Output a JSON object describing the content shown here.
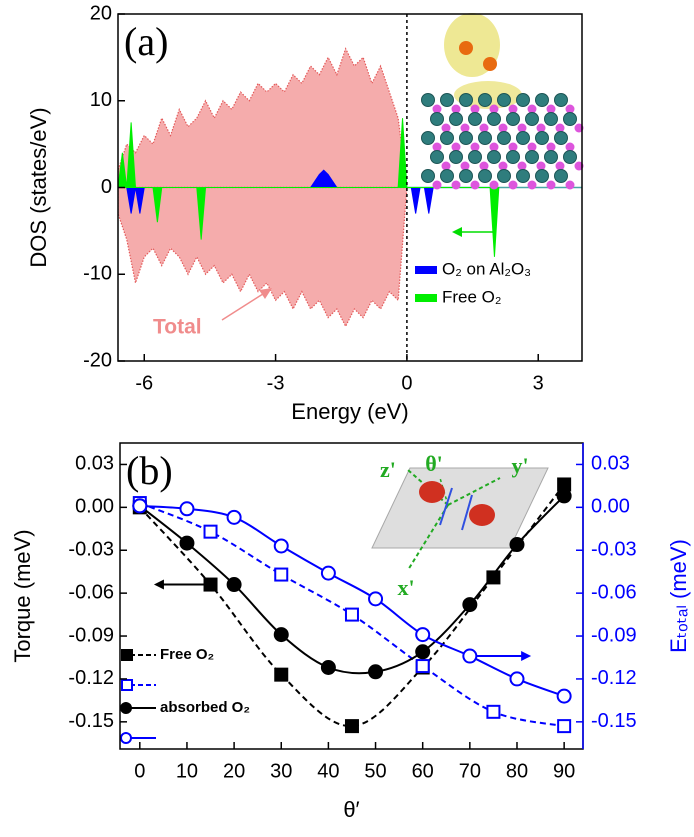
{
  "chart_data": [
    {
      "type": "area",
      "panel_label": "(a)",
      "xlabel": "Energy (eV)",
      "ylabel": "DOS (states/eV)",
      "annotation": "Total",
      "xlim": [
        -6.6,
        4
      ],
      "xticks": [
        -6,
        -3,
        0,
        3
      ],
      "ylim": [
        -20,
        20
      ],
      "yticks": [
        -20,
        -10,
        0,
        10,
        20
      ],
      "legend": "lower right",
      "series": [
        {
          "color": "#f4a4a4",
          "x": [
            -6.6,
            -6.4,
            -6.2,
            -6.0,
            -5.8,
            -5.6,
            -5.4,
            -5.2,
            -5.0,
            -4.8,
            -4.6,
            -4.4,
            -4.2,
            -4.0,
            -3.8,
            -3.6,
            -3.4,
            -3.2,
            -3.0,
            -2.8,
            -2.6,
            -2.4,
            -2.2,
            -2.0,
            -1.8,
            -1.6,
            -1.4,
            -1.2,
            -1.0,
            -0.8,
            -0.6,
            -0.4,
            -0.2,
            0
          ],
          "values": [
            2,
            5,
            4,
            6,
            5,
            8,
            6,
            9,
            7,
            8,
            10,
            8,
            10,
            9,
            11,
            10,
            12,
            11,
            12,
            11,
            13,
            12,
            14,
            13,
            15,
            13,
            16,
            14,
            15,
            12,
            14,
            11,
            8,
            0
          ]
        },
        {
          "color": "#f4a4a4",
          "x": [
            -6.6,
            -6.4,
            -6.2,
            -6.0,
            -5.8,
            -5.6,
            -5.4,
            -5.2,
            -5.0,
            -4.8,
            -4.6,
            -4.4,
            -4.2,
            -4.0,
            -3.8,
            -3.6,
            -3.4,
            -3.2,
            -3.0,
            -2.8,
            -2.6,
            -2.4,
            -2.2,
            -2.0,
            -1.8,
            -1.6,
            -1.4,
            -1.2,
            -1.0,
            -0.8,
            -0.6,
            -0.4,
            -0.2,
            0
          ],
          "values": [
            -3,
            -6,
            -11,
            -8,
            -7,
            -9,
            -7,
            -8,
            -10,
            -8,
            -10,
            -9,
            -11,
            -10,
            -12,
            -10,
            -12,
            -11,
            -13,
            -12,
            -14,
            -12,
            -14,
            -13,
            -15,
            -14,
            -16,
            -14,
            -15,
            -13,
            -14,
            -12,
            -13,
            0
          ]
        },
        {
          "name": "O₂ on Al₂O₃",
          "color": "#0000ff",
          "x": [
            -6.4,
            -6.3,
            -6.2,
            -6.1,
            -6.0,
            -2.2,
            -2.0,
            -1.9,
            -1.8,
            -1.6,
            0.1,
            0.2,
            0.3,
            0.4,
            0.5,
            0.6
          ],
          "values": [
            0,
            -3,
            0,
            -3,
            0,
            0,
            1.5,
            2,
            1.5,
            0,
            0,
            -3,
            0,
            0,
            -3,
            0
          ]
        },
        {
          "name": "Free O₂",
          "color": "#00ee00",
          "x": [
            -6.6,
            -6.5,
            -6.4,
            -6.3,
            -6.2,
            -5.8,
            -5.7,
            -5.6,
            -4.8,
            -4.7,
            -4.6,
            -0.2,
            -0.1,
            0.0,
            1.9,
            2.0,
            2.1
          ],
          "values": [
            0,
            4,
            0,
            7.5,
            0,
            0,
            -4,
            0,
            0,
            -6,
            0,
            0,
            8,
            0,
            0,
            -8,
            0
          ]
        }
      ]
    },
    {
      "type": "line",
      "panel_label": "(b)",
      "xlabel": "θ′",
      "ylabel": "Torque (meV)",
      "y2label": "Eₜₒₜₐₗ (meV)",
      "inset_labels": [
        "z'",
        "θ'",
        "y'",
        "x'"
      ],
      "xlim": [
        -4.2,
        94
      ],
      "xticks": [
        0,
        10,
        20,
        30,
        40,
        50,
        60,
        70,
        80,
        90
      ],
      "ylim": [
        -0.169,
        0.045
      ],
      "yticks": [
        -0.15,
        -0.12,
        -0.09,
        -0.06,
        -0.03,
        {
          "value": 0,
          "label": "0.00"
        },
        0.03
      ],
      "y2lim": [
        -0.169,
        0.045
      ],
      "y2ticks": [
        -0.15,
        -0.12,
        -0.09,
        -0.06,
        -0.03,
        {
          "value": 0,
          "label": "0.00"
        },
        0.03
      ],
      "legend": "lower left",
      "series": [
        {
          "name": "Free O₂",
          "color": "#000000",
          "marker": "square",
          "filled": true,
          "dash": true,
          "x": [
            0,
            15,
            30,
            45,
            60,
            75,
            90
          ],
          "values": [
            0.0,
            -0.054,
            -0.117,
            -0.153,
            -0.112,
            -0.049,
            0.016
          ]
        },
        {
          "color": "#0000ff",
          "marker": "square",
          "filled": false,
          "dash": true,
          "axis": "y2",
          "x": [
            0,
            15,
            30,
            45,
            60,
            75,
            90
          ],
          "values": [
            0.003,
            -0.017,
            -0.047,
            -0.075,
            -0.111,
            -0.143,
            -0.153
          ]
        },
        {
          "name": "absorbed O₂",
          "color": "#000000",
          "marker": "circle",
          "filled": true,
          "dash": false,
          "x": [
            0,
            10,
            20,
            30,
            40,
            50,
            60,
            70,
            80,
            90
          ],
          "values": [
            0.001,
            -0.025,
            -0.054,
            -0.089,
            -0.112,
            -0.115,
            -0.101,
            -0.068,
            -0.026,
            0.008
          ]
        },
        {
          "color": "#0000ff",
          "marker": "circle",
          "filled": false,
          "dash": false,
          "axis": "y2",
          "x": [
            0,
            10,
            20,
            30,
            40,
            50,
            60,
            70,
            80,
            90
          ],
          "values": [
            0.001,
            -0.001,
            -0.007,
            -0.027,
            -0.046,
            -0.064,
            -0.089,
            -0.104,
            -0.12,
            -0.132
          ]
        }
      ]
    }
  ]
}
